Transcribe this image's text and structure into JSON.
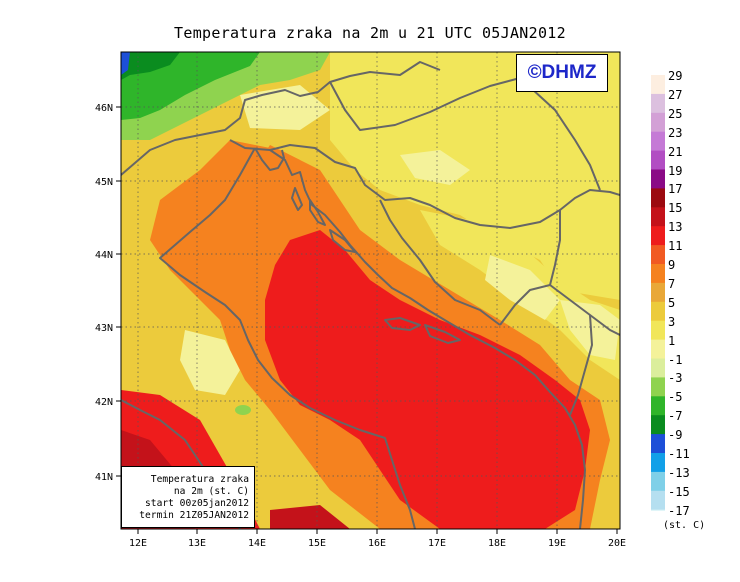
{
  "title": "Temperatura zraka na 2m u 21 UTC 05JAN2012",
  "logo_text": "©DHMZ",
  "info_box": {
    "line1": "Temperatura zraka",
    "line2": "na 2m (st. C)",
    "line3": "start 00z05jan2012",
    "line4": "termin 21Z05JAN2012"
  },
  "axes": {
    "lon_labels": [
      "12E",
      "13E",
      "14E",
      "15E",
      "16E",
      "17E",
      "18E",
      "19E",
      "20E"
    ],
    "lat_labels": [
      "46N",
      "45N",
      "44N",
      "43N",
      "42N",
      "41N"
    ]
  },
  "legend": {
    "units": "(st. C)",
    "labels": [
      "29",
      "27",
      "25",
      "23",
      "21",
      "19",
      "17",
      "15",
      "13",
      "11",
      "9",
      "7",
      "5",
      "3",
      "1",
      "-1",
      "-3",
      "-5",
      "-7",
      "-9",
      "-11",
      "-13",
      "-15",
      "-17"
    ],
    "colors": [
      "#fdeee0",
      "#dcc0df",
      "#d3a0d6",
      "#c57ad6",
      "#b24ec3",
      "#8a0a86",
      "#9c0a10",
      "#c4121a",
      "#ee1c1c",
      "#f15a22",
      "#f5821f",
      "#e9a838",
      "#eccb3c",
      "#f1e65a",
      "#f4f29a",
      "#dbee9c",
      "#8fd34f",
      "#2fb52a",
      "#0a8c1f",
      "#1d4fd8",
      "#12a0e8",
      "#7fd0e8",
      "#b5dff0",
      "#e0f5f8"
    ]
  },
  "colors": {
    "background": "#ffffff",
    "field_cold": "#e9ee9a",
    "field_mild": "#f1e65a",
    "field_warm": "#f5821f",
    "field_sea": "#ee1c1c",
    "coast_border": "#666666",
    "logo": "#1d27c9"
  }
}
